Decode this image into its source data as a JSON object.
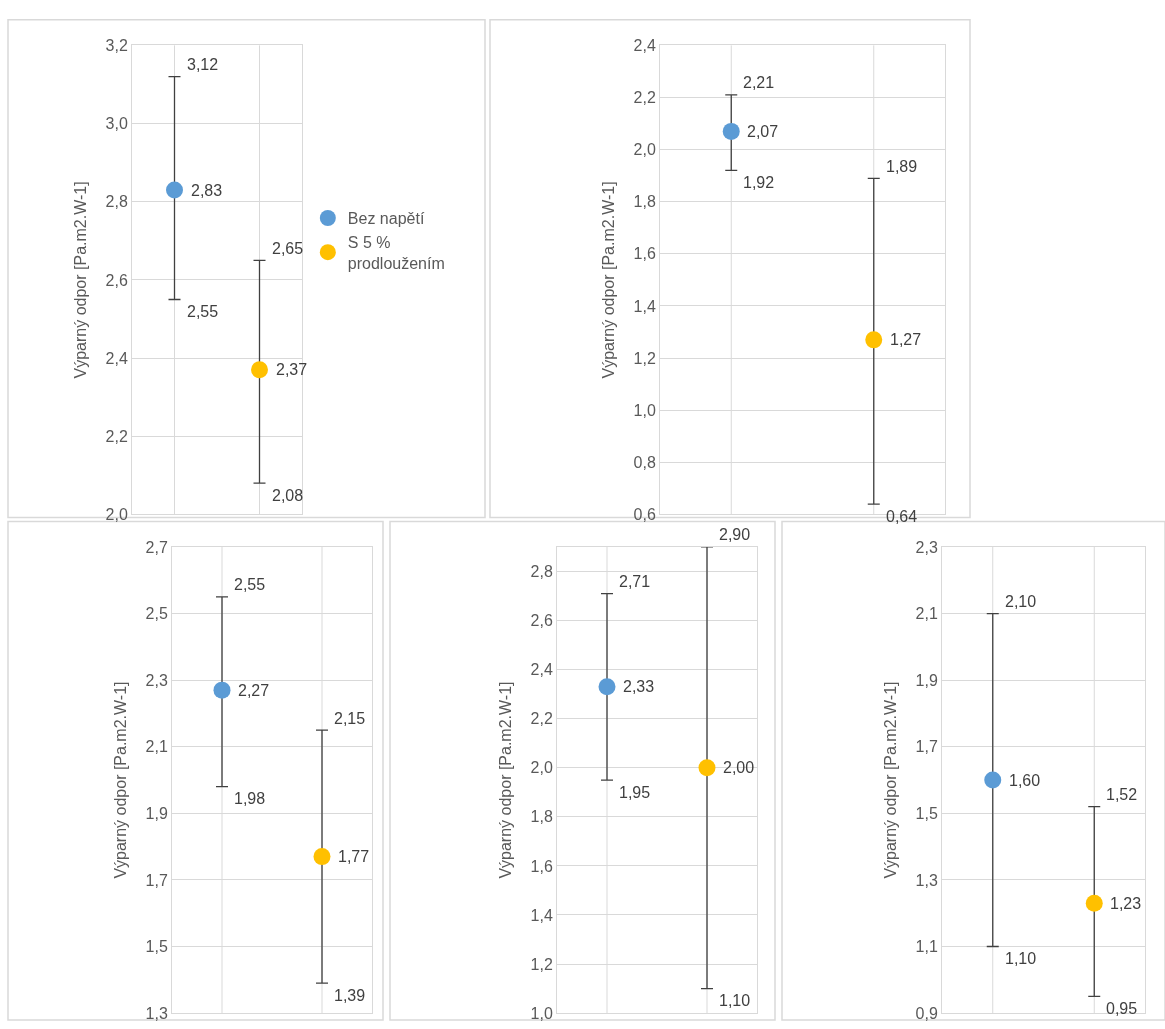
{
  "chart_data": [
    {
      "type": "scatter",
      "ylabel": "Výparný odpor [Pa.m2.W-1]",
      "categories": [
        null,
        null
      ],
      "legend": "right",
      "grid": true,
      "marker": "circle",
      "ylim": [
        2.0,
        3.2
      ],
      "yticks": [
        {
          "value": 2.0,
          "label": "2,0"
        },
        {
          "value": 2.2,
          "label": "2,2"
        },
        {
          "value": 2.4,
          "label": "2,4"
        },
        {
          "value": 2.6,
          "label": "2,6"
        },
        {
          "value": 2.8,
          "label": "2,8"
        },
        {
          "value": 3.0,
          "label": "3,0"
        },
        {
          "value": 3.2,
          "label": "3,2"
        }
      ],
      "series": [
        {
          "name": "Bez napětí",
          "color": "#5b9bd5",
          "values": [
            2.83,
            null
          ],
          "errors": [
            [
              2.55,
              3.12
            ],
            null
          ],
          "value_labels": [
            "2,83",
            null
          ]
        },
        {
          "name": "S 5 % prodloužením",
          "color": "#ffc000",
          "values": [
            null,
            2.37
          ],
          "errors": [
            null,
            [
              2.08,
              2.65
            ]
          ],
          "value_labels": [
            null,
            "2,37"
          ]
        }
      ],
      "annotations": [
        "3,12",
        "2,55",
        "2,65",
        "2,08"
      ]
    },
    {
      "type": "scatter",
      "ylabel": "Výparný odpor [Pa.m2.W-1]",
      "categories": [
        null,
        null
      ],
      "grid": true,
      "marker": "circle",
      "ylim": [
        0.6,
        2.4
      ],
      "yticks": [
        {
          "value": 0.6,
          "label": "0,6"
        },
        {
          "value": 0.8,
          "label": "0,8"
        },
        {
          "value": 1.0,
          "label": "1,0"
        },
        {
          "value": 1.2,
          "label": "1,2"
        },
        {
          "value": 1.4,
          "label": "1,4"
        },
        {
          "value": 1.6,
          "label": "1,6"
        },
        {
          "value": 1.8,
          "label": "1,8"
        },
        {
          "value": 2.0,
          "label": "2,0"
        },
        {
          "value": 2.2,
          "label": "2,2"
        },
        {
          "value": 2.4,
          "label": "2,4"
        }
      ],
      "series": [
        {
          "color": "#5b9bd5",
          "values": [
            2.07,
            null
          ],
          "errors": [
            [
              1.92,
              2.21
            ],
            null
          ],
          "value_labels": [
            "2,07",
            null
          ]
        },
        {
          "color": "#ffc000",
          "values": [
            null,
            1.27
          ],
          "errors": [
            null,
            [
              0.64,
              1.89
            ]
          ],
          "value_labels": [
            null,
            "1,27"
          ]
        }
      ],
      "annotations": [
        "2,21",
        "1,92",
        "1,89",
        "0,64"
      ]
    },
    {
      "type": "scatter",
      "ylabel": "Výparný odpor [Pa.m2.W-1]",
      "categories": [
        null,
        null
      ],
      "grid": true,
      "marker": "circle",
      "ylim": [
        1.3,
        2.7
      ],
      "yticks": [
        {
          "value": 1.3,
          "label": "1,3"
        },
        {
          "value": 1.5,
          "label": "1,5"
        },
        {
          "value": 1.7,
          "label": "1,7"
        },
        {
          "value": 1.9,
          "label": "1,9"
        },
        {
          "value": 2.1,
          "label": "2,1"
        },
        {
          "value": 2.3,
          "label": "2,3"
        },
        {
          "value": 2.5,
          "label": "2,5"
        },
        {
          "value": 2.7,
          "label": "2,7"
        }
      ],
      "series": [
        {
          "color": "#5b9bd5",
          "values": [
            2.27,
            null
          ],
          "errors": [
            [
              1.98,
              2.55
            ],
            null
          ],
          "value_labels": [
            "2,27",
            null
          ]
        },
        {
          "color": "#ffc000",
          "values": [
            null,
            1.77
          ],
          "errors": [
            null,
            [
              1.39,
              2.15
            ]
          ],
          "value_labels": [
            null,
            "1,77"
          ]
        }
      ],
      "annotations": [
        "2,55",
        "1,98",
        "2,15",
        "1,39"
      ]
    },
    {
      "type": "scatter",
      "ylabel": "Výparný odpor [Pa.m2.W-1]",
      "categories": [
        null,
        null
      ],
      "grid": true,
      "marker": "circle",
      "ylim": [
        1.0,
        2.9
      ],
      "yticks": [
        {
          "value": 1.0,
          "label": "1,0"
        },
        {
          "value": 1.2,
          "label": "1,2"
        },
        {
          "value": 1.4,
          "label": "1,4"
        },
        {
          "value": 1.6,
          "label": "1,6"
        },
        {
          "value": 1.8,
          "label": "1,8"
        },
        {
          "value": 2.0,
          "label": "2,0"
        },
        {
          "value": 2.2,
          "label": "2,2"
        },
        {
          "value": 2.4,
          "label": "2,4"
        },
        {
          "value": 2.6,
          "label": "2,6"
        },
        {
          "value": 2.8,
          "label": "2,8"
        }
      ],
      "series": [
        {
          "color": "#5b9bd5",
          "values": [
            2.33,
            null
          ],
          "errors": [
            [
              1.95,
              2.71
            ],
            null
          ],
          "value_labels": [
            "2,33",
            null
          ]
        },
        {
          "color": "#ffc000",
          "values": [
            null,
            2.0
          ],
          "errors": [
            null,
            [
              1.1,
              2.9
            ]
          ],
          "value_labels": [
            null,
            "2,00"
          ]
        }
      ],
      "annotations": [
        "2,71",
        "1,95",
        "2,90",
        "1,10"
      ]
    },
    {
      "type": "scatter",
      "ylabel": "Výparný odpor [Pa.m2.W-1]",
      "categories": [
        null,
        null
      ],
      "grid": true,
      "marker": "circle",
      "ylim": [
        0.9,
        2.3
      ],
      "yticks": [
        {
          "value": 0.9,
          "label": "0,9"
        },
        {
          "value": 1.1,
          "label": "1,1"
        },
        {
          "value": 1.3,
          "label": "1,3"
        },
        {
          "value": 1.5,
          "label": "1,5"
        },
        {
          "value": 1.7,
          "label": "1,7"
        },
        {
          "value": 1.9,
          "label": "1,9"
        },
        {
          "value": 2.1,
          "label": "2,1"
        },
        {
          "value": 2.3,
          "label": "2,3"
        }
      ],
      "series": [
        {
          "color": "#5b9bd5",
          "values": [
            1.6,
            null
          ],
          "errors": [
            [
              1.1,
              2.1
            ],
            null
          ],
          "value_labels": [
            "1,60",
            null
          ]
        },
        {
          "color": "#ffc000",
          "values": [
            null,
            1.23
          ],
          "errors": [
            null,
            [
              0.95,
              1.52
            ]
          ],
          "value_labels": [
            null,
            "1,23"
          ]
        }
      ],
      "annotations": [
        "2,10",
        "1,10",
        "1,52",
        "0,95"
      ]
    }
  ]
}
